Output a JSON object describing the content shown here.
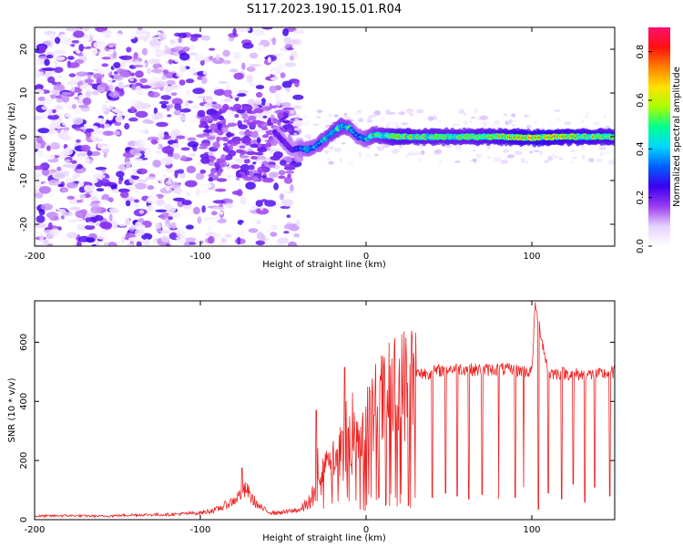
{
  "title": "S117.2023.190.15.01.R04",
  "chart_data": [
    {
      "type": "heatmap",
      "xlabel": "Height of straight line (km)",
      "ylabel": "Frequency (Hz)",
      "xlim": [
        -200,
        150
      ],
      "ylim": [
        -25,
        25
      ],
      "x_ticks": [
        -200,
        -100,
        0,
        100
      ],
      "y_ticks": [
        -20,
        -10,
        0,
        10,
        20
      ],
      "colorbar": {
        "label": "Normalized spectral amplitude",
        "range": [
          0,
          0.9
        ],
        "ticks": [
          "0.0",
          "0.2",
          "0.4",
          "0.6",
          "0.8"
        ],
        "colormap": [
          "#ffffff",
          "#e6d2ff",
          "#9b3cf0",
          "#3a00f0",
          "#0060ff",
          "#00d8ff",
          "#00ff90",
          "#a8ff00",
          "#ffe000",
          "#ff8000",
          "#ff1010",
          "#ff1070"
        ]
      },
      "ridge": {
        "description_points_x": [
          -55,
          -50,
          -45,
          -40,
          -35,
          -30,
          -25,
          -20,
          -15,
          -10,
          -5,
          0,
          5,
          10,
          20,
          40,
          60,
          80,
          100,
          120,
          150
        ],
        "frequency_hz": [
          1.0,
          -1.0,
          -3.0,
          -2.5,
          -3.0,
          -2.0,
          -0.5,
          1.0,
          2.5,
          2.0,
          0.0,
          -0.5,
          0.5,
          0.3,
          0.0,
          0.0,
          0.0,
          0.0,
          -0.2,
          0.0,
          0.0
        ],
        "amplitude": [
          0.3,
          0.25,
          0.2,
          0.45,
          0.5,
          0.5,
          0.55,
          0.6,
          0.6,
          0.55,
          0.45,
          0.5,
          0.6,
          0.65,
          0.75,
          0.7,
          0.7,
          0.75,
          0.85,
          0.8,
          0.75
        ]
      },
      "noise_region": {
        "x_range": [
          -200,
          -45
        ],
        "frequency_range": [
          -25,
          25
        ],
        "amplitude_range": [
          0.0,
          0.25
        ]
      }
    },
    {
      "type": "line",
      "xlabel": "Height of straight line (km)",
      "ylabel": "SNR (10 * v/v)",
      "xlim": [
        -200,
        150
      ],
      "ylim": [
        0,
        740
      ],
      "x_ticks": [
        -200,
        -100,
        0,
        100
      ],
      "y_ticks": [
        0,
        200,
        400,
        600
      ],
      "line_color": "#ee2222",
      "series": [
        {
          "x": [
            -200,
            -180,
            -160,
            -140,
            -120,
            -100,
            -90,
            -80,
            -75,
            -72,
            -70,
            -65,
            -60,
            -55,
            -50,
            -45,
            -40,
            -35,
            -30,
            -25,
            -20,
            -15,
            -10,
            -5,
            0,
            5,
            10,
            15,
            20,
            25,
            30,
            40,
            50,
            60,
            70,
            80,
            90,
            100,
            102,
            110,
            120,
            130,
            140,
            150
          ],
          "values": [
            10,
            12,
            10,
            14,
            15,
            20,
            30,
            55,
            80,
            90,
            70,
            40,
            25,
            20,
            22,
            25,
            30,
            60,
            110,
            160,
            200,
            230,
            260,
            300,
            340,
            380,
            410,
            440,
            460,
            480,
            490,
            500,
            510,
            510,
            505,
            510,
            505,
            500,
            730,
            495,
            495,
            490,
            490,
            500
          ]
        }
      ],
      "spikes_up": [
        {
          "x": -75,
          "value": 175
        },
        {
          "x": -30,
          "value": 370
        },
        {
          "x": -13,
          "value": 515
        },
        {
          "x": 102,
          "value": 735
        }
      ],
      "spikes_down": [
        {
          "x": 40,
          "value": 75
        },
        {
          "x": 48,
          "value": 90
        },
        {
          "x": 55,
          "value": 80
        },
        {
          "x": 62,
          "value": 70
        },
        {
          "x": 70,
          "value": 85
        },
        {
          "x": 80,
          "value": 70
        },
        {
          "x": 90,
          "value": 75
        },
        {
          "x": 95,
          "value": 110
        },
        {
          "x": 104,
          "value": 35
        },
        {
          "x": 110,
          "value": 90
        },
        {
          "x": 118,
          "value": 70
        },
        {
          "x": 125,
          "value": 120
        },
        {
          "x": 132,
          "value": 60
        },
        {
          "x": 138,
          "value": 110
        },
        {
          "x": 147,
          "value": 80
        }
      ]
    }
  ]
}
